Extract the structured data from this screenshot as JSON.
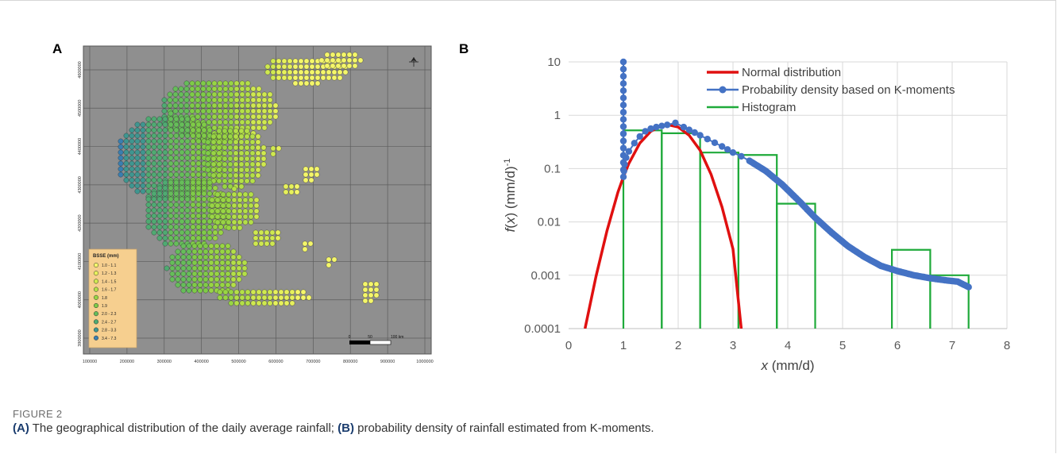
{
  "figure": {
    "label": "FIGURE 2",
    "caption_parts": [
      {
        "text": "(A)",
        "bold": true
      },
      {
        "text": " The geographical distribution of the daily average rainfall; ",
        "bold": false
      },
      {
        "text": "(B)",
        "bold": true
      },
      {
        "text": " probability density of rainfall estimated from K-moments.",
        "bold": false
      }
    ]
  },
  "panel_a": {
    "letter": "A",
    "legend_title": "BSSE (mm)",
    "legend_items": [
      {
        "label": "1.0 - 1.1",
        "color": "#f4f66a"
      },
      {
        "label": "1.2 - 1.3",
        "color": "#e6f05c"
      },
      {
        "label": "1.4 - 1.5",
        "color": "#cfe850"
      },
      {
        "label": "1.6 - 1.7",
        "color": "#b4df48"
      },
      {
        "label": "1.8",
        "color": "#98d544"
      },
      {
        "label": "1.9",
        "color": "#7fcb48"
      },
      {
        "label": "2.0 - 2.3",
        "color": "#66bd5a"
      },
      {
        "label": "2.4 - 2.7",
        "color": "#4faa72"
      },
      {
        "label": "2.8 - 3.3",
        "color": "#3f9690"
      },
      {
        "label": "3.4 - 7.3",
        "color": "#3a7fb0"
      }
    ],
    "x_ticks": [
      "100000",
      "200000",
      "300000",
      "400000",
      "500000",
      "600000",
      "700000",
      "800000",
      "900000",
      "1000000"
    ],
    "y_ticks": [
      "4600000",
      "4500000",
      "4400000",
      "4300000",
      "4200000",
      "4100000",
      "4000000",
      "3900000"
    ],
    "scalebar": {
      "labels": [
        "0",
        "50",
        "100 km"
      ]
    },
    "background_color": "#8f8f8f"
  },
  "panel_b": {
    "letter": "B",
    "chart_data": {
      "type": "line",
      "title": "",
      "xlabel": "x (mm/d)",
      "ylabel": "f(x) (mm/d)-1",
      "xlim": [
        0,
        8
      ],
      "ylim": [
        0.0001,
        10
      ],
      "yscale": "log",
      "x_ticks": [
        "0",
        "1",
        "2",
        "3",
        "4",
        "5",
        "6",
        "7",
        "8"
      ],
      "y_ticks": [
        "10",
        "1",
        "0.1",
        "0.01",
        "0.001",
        "0.0001"
      ],
      "grid": true,
      "legend_position": "top-center",
      "series": [
        {
          "name": "Normal distribution",
          "color": "#e01010",
          "x": [
            0.3,
            0.5,
            0.7,
            0.9,
            1.0,
            1.1,
            1.3,
            1.5,
            1.7,
            1.82,
            2.0,
            2.2,
            2.4,
            2.6,
            2.8,
            3.0,
            3.15
          ],
          "y": [
            0.0001,
            0.00095,
            0.0068,
            0.036,
            0.07,
            0.125,
            0.3,
            0.5,
            0.64,
            0.66,
            0.6,
            0.42,
            0.22,
            0.078,
            0.019,
            0.0031,
            0.0001
          ]
        },
        {
          "name": "Probability density based on K-moments",
          "color": "#4472c4",
          "x": [
            1.0,
            1.0,
            1.01,
            1.02,
            1.05,
            1.1,
            1.2,
            1.3,
            1.4,
            1.5,
            1.6,
            1.7,
            1.8,
            1.95,
            2.1,
            2.4,
            2.8,
            3.0,
            3.15,
            3.3,
            3.6,
            3.9,
            4.2,
            4.5,
            4.8,
            5.1,
            5.4,
            5.7,
            6.0,
            6.3,
            6.6,
            6.9,
            7.1,
            7.3
          ],
          "y": [
            10,
            0.07,
            0.09,
            0.12,
            0.16,
            0.21,
            0.3,
            0.4,
            0.5,
            0.56,
            0.6,
            0.63,
            0.66,
            0.72,
            0.6,
            0.42,
            0.26,
            0.2,
            0.17,
            0.14,
            0.09,
            0.05,
            0.025,
            0.012,
            0.0063,
            0.0035,
            0.0022,
            0.0015,
            0.0012,
            0.001,
            0.00088,
            0.0008,
            0.00076,
            0.0006
          ]
        },
        {
          "name": "Histogram",
          "color": "#1faa3a",
          "type": "histogram",
          "bins": [
            {
              "x0": 1.0,
              "x1": 1.7,
              "value": 0.52
            },
            {
              "x0": 1.7,
              "x1": 2.4,
              "value": 0.46
            },
            {
              "x0": 2.4,
              "x1": 3.1,
              "value": 0.2
            },
            {
              "x0": 3.1,
              "x1": 3.8,
              "value": 0.18
            },
            {
              "x0": 3.8,
              "x1": 4.5,
              "value": 0.022
            },
            {
              "x0": 5.9,
              "x1": 6.6,
              "value": 0.003
            },
            {
              "x0": 6.6,
              "x1": 7.3,
              "value": 0.001
            }
          ]
        }
      ]
    }
  }
}
